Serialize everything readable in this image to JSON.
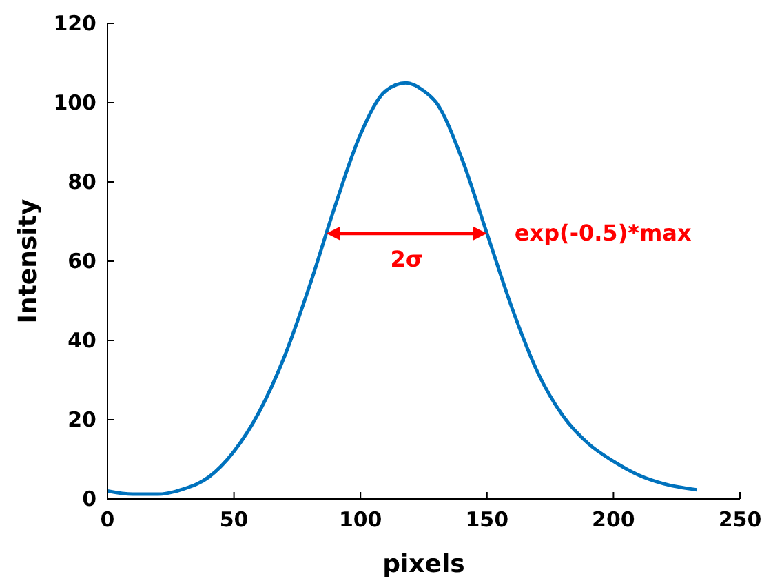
{
  "chart_data": {
    "type": "line",
    "xlabel": "pixels",
    "ylabel": "Intensity",
    "x": [
      0,
      10,
      20,
      30,
      40,
      50,
      60,
      70,
      80,
      90,
      100,
      110,
      118,
      125,
      130,
      140,
      150,
      160,
      170,
      180,
      190,
      200,
      210,
      220,
      233
    ],
    "series": [
      {
        "color": "#0072bd",
        "values": [
          2,
          1.2,
          1.2,
          2.5,
          5.5,
          12,
          22,
          36,
          54,
          74,
          92,
          103,
          105,
          103,
          100,
          86,
          67,
          48,
          32,
          21,
          14,
          9.5,
          6,
          3.8,
          2.3
        ]
      }
    ],
    "xlim": [
      0,
      250
    ],
    "xticks": [
      0,
      50,
      100,
      150,
      200,
      250
    ],
    "ylim": [
      0,
      120
    ],
    "yticks": [
      0,
      20,
      40,
      60,
      80,
      100,
      120
    ],
    "grid": false,
    "marker": "none",
    "line_style": "solid",
    "annotations": [
      {
        "text": "exp(-0.5)*max",
        "x": 150,
        "y": 67
      },
      "2σ"
    ]
  }
}
